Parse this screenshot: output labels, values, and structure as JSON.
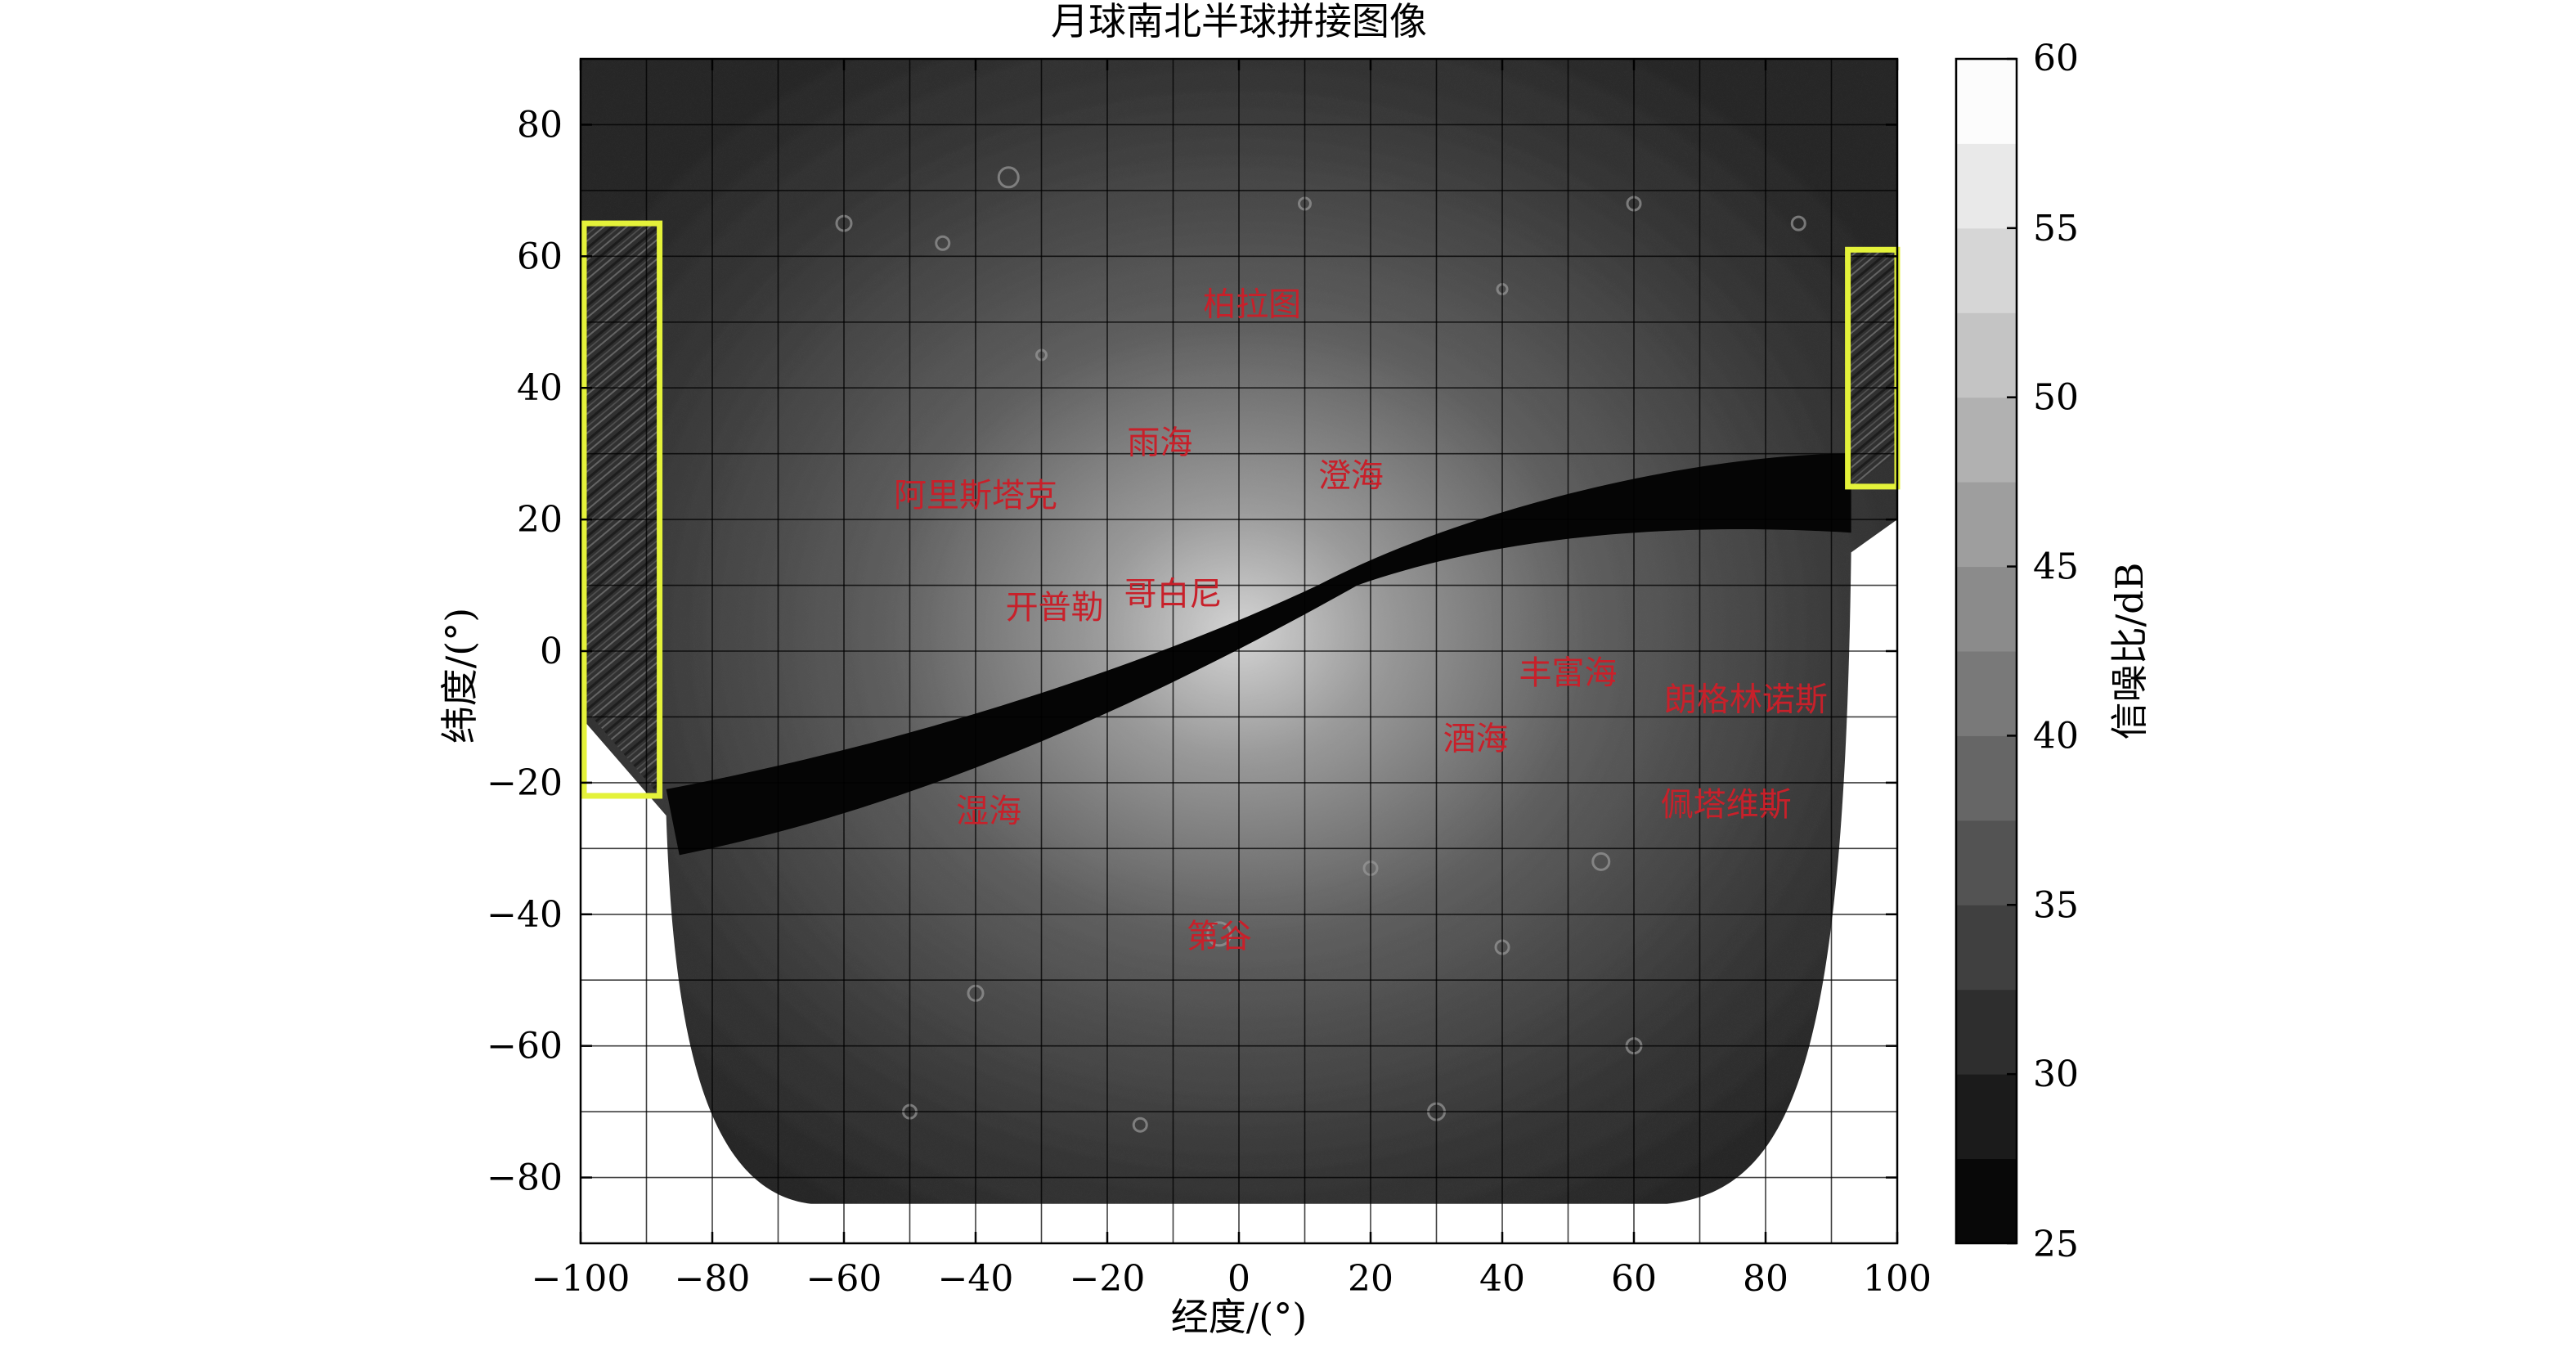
{
  "chart_data": {
    "type": "heatmap",
    "title": "月球南北半球拼接图像",
    "xlabel": "经度/(°)",
    "ylabel": "纬度/(°)",
    "xlim": [
      -100,
      100
    ],
    "ylim": [
      -90,
      90
    ],
    "x_ticks": [
      -100,
      -80,
      -60,
      -40,
      -20,
      0,
      20,
      40,
      60,
      80,
      100
    ],
    "y_ticks": [
      -80,
      -60,
      -40,
      -20,
      0,
      20,
      40,
      60,
      80
    ],
    "x_tick_labels": [
      "−100",
      "−80",
      "−60",
      "−40",
      "−20",
      "0",
      "20",
      "40",
      "60",
      "80",
      "100"
    ],
    "y_tick_labels": [
      "−80",
      "−60",
      "−40",
      "−20",
      "0",
      "20",
      "40",
      "60",
      "80"
    ],
    "grid": true,
    "grid_step_deg": 10,
    "colorbar": {
      "label": "信噪比/dB",
      "range": [
        25,
        60
      ],
      "ticks": [
        25,
        30,
        35,
        40,
        45,
        50,
        55,
        60
      ],
      "levels": 14,
      "placement": "right"
    },
    "annotations": [
      {
        "text": "柏拉图",
        "lon": 2,
        "lat": 51
      },
      {
        "text": "雨海",
        "lon": -12,
        "lat": 30
      },
      {
        "text": "阿里斯塔克",
        "lon": -40,
        "lat": 22
      },
      {
        "text": "澄海",
        "lon": 17,
        "lat": 25
      },
      {
        "text": "开普勒",
        "lon": -28,
        "lat": 5
      },
      {
        "text": "哥白尼",
        "lon": -10,
        "lat": 7
      },
      {
        "text": "丰富海",
        "lon": 50,
        "lat": -5
      },
      {
        "text": "朗格林诺斯",
        "lon": 77,
        "lat": -9
      },
      {
        "text": "酒海",
        "lon": 36,
        "lat": -15
      },
      {
        "text": "湿海",
        "lon": -38,
        "lat": -26
      },
      {
        "text": "佩塔维斯",
        "lon": 74,
        "lat": -25
      },
      {
        "text": "第谷",
        "lon": -3,
        "lat": -45
      }
    ],
    "highlight_boxes": [
      {
        "lon_range": [
          -100,
          -88
        ],
        "lat_range": [
          -22,
          65
        ],
        "color": "#e4f23a"
      },
      {
        "lon_range": [
          92,
          100
        ],
        "lat_range": [
          25,
          61
        ],
        "color": "#e4f23a"
      }
    ],
    "colors": {
      "annotation": "#c8202a",
      "highlight": "#e4f23a",
      "gap": "#050505",
      "grid": "#000000"
    }
  }
}
